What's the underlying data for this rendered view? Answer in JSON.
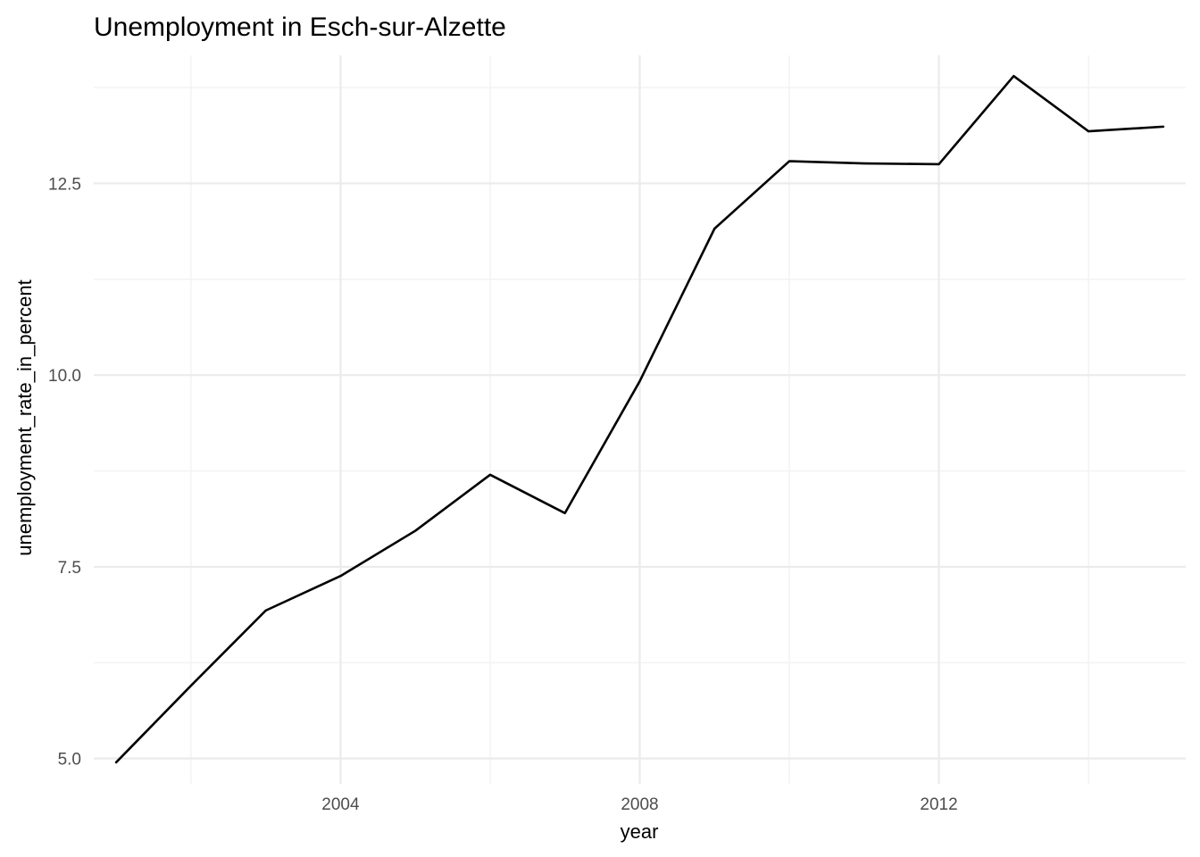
{
  "chart_data": {
    "type": "line",
    "title": "Unemployment in Esch-sur-Alzette",
    "xlabel": "year",
    "ylabel": "unemployment_rate_in_percent",
    "x": [
      2001,
      2002,
      2003,
      2004,
      2005,
      2006,
      2007,
      2008,
      2009,
      2010,
      2011,
      2012,
      2013,
      2014,
      2015
    ],
    "series": [
      {
        "values": [
          4.95,
          5.95,
          6.93,
          7.38,
          7.97,
          8.7,
          8.2,
          9.92,
          11.91,
          12.79,
          12.76,
          12.75,
          13.9,
          13.18,
          13.24
        ]
      }
    ],
    "xlim": [
      2000.7,
      2015.3
    ],
    "ylim": [
      4.67,
      14.17
    ],
    "x_ticks": [
      2004,
      2008,
      2012
    ],
    "x_tick_labels": [
      "2004",
      "2008",
      "2012"
    ],
    "y_ticks": [
      5.0,
      7.5,
      10.0,
      12.5
    ],
    "y_tick_labels": [
      "5.0",
      "7.5",
      "10.0",
      "12.5"
    ],
    "grid": true,
    "legend": "none"
  }
}
